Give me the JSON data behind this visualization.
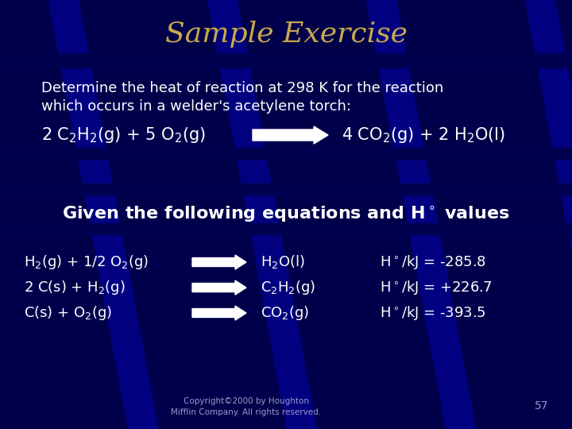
{
  "title": "Sample Exercise",
  "title_color": "#C8A84B",
  "title_fontsize": 26,
  "bg_color": "#000080",
  "text_color": "#FFFFFF",
  "body_fontsize": 13,
  "subtitle_fontsize": 16,
  "copyright": "Copyright©2000 by Houghton\nMifflin Company. All rights reserved.",
  "page_num": "57",
  "desc_line1": "Determine the heat of reaction at 298 K for the reaction",
  "desc_line2": "which occurs in a welder's acetylene torch:",
  "given_text": "Given the following equations and H° values",
  "band_color": "#000050",
  "separator_color": "#000040"
}
